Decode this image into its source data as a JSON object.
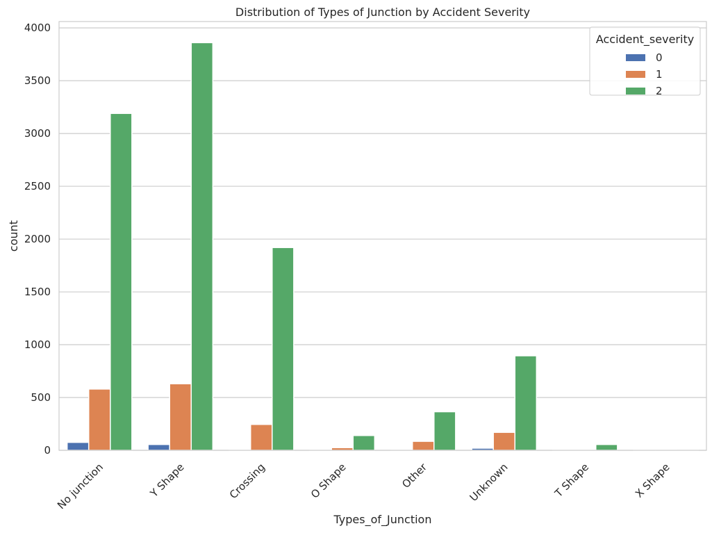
{
  "chart_data": {
    "type": "bar",
    "title": "Distribution of Types of Junction by Accident Severity",
    "xlabel": "Types_of_Junction",
    "ylabel": "count",
    "categories": [
      "No junction",
      "Y Shape",
      "Crossing",
      "O Shape",
      "Other",
      "Unknown",
      "T Shape",
      "X Shape"
    ],
    "ylim": [
      0,
      4060
    ],
    "yticks": [
      0,
      500,
      1000,
      1500,
      2000,
      2500,
      3000,
      3500,
      4000
    ],
    "grid": true,
    "legend": {
      "title": "Accident_severity",
      "placement": "top-right"
    },
    "series": [
      {
        "name": "0",
        "color": "#4c72b0",
        "values": [
          75,
          55,
          4,
          2,
          4,
          20,
          2,
          1
        ]
      },
      {
        "name": "1",
        "color": "#dd8452",
        "values": [
          580,
          630,
          245,
          25,
          85,
          170,
          5,
          3
        ]
      },
      {
        "name": "2",
        "color": "#55a868",
        "values": [
          3190,
          3860,
          1920,
          140,
          365,
          895,
          55,
          10
        ]
      }
    ]
  }
}
